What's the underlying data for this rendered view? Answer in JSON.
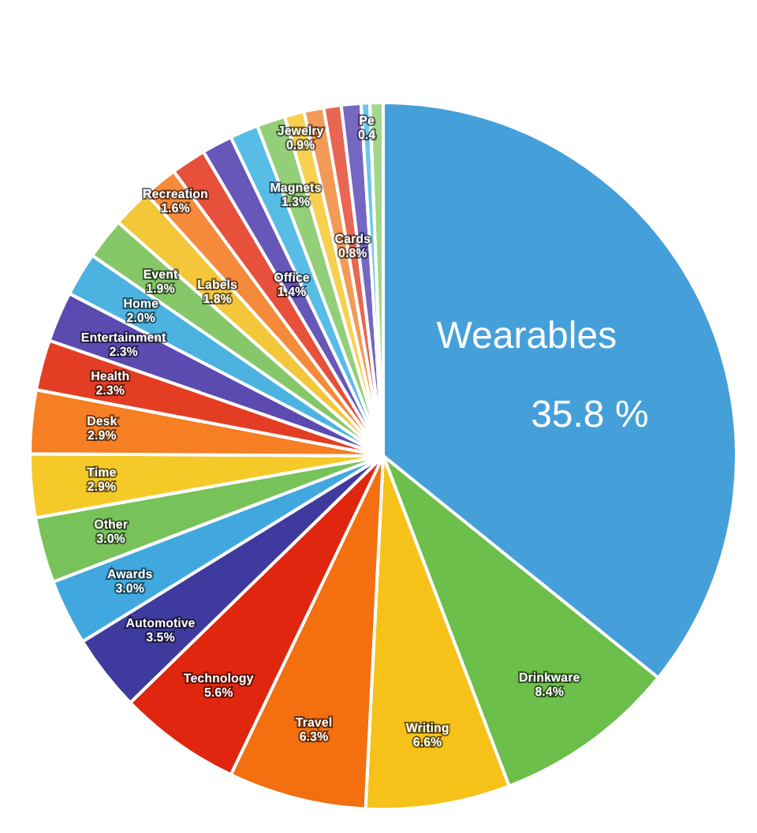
{
  "chart_data": {
    "type": "pie",
    "categories": [
      "Wearables",
      "Drinkware",
      "Writing",
      "Travel",
      "Technology",
      "Automotive",
      "Awards",
      "Other",
      "Time",
      "Desk",
      "Health",
      "Entertainment",
      "Home",
      "Event",
      "Labels",
      "Recreation",
      null,
      "Office",
      null,
      "Magnets",
      "Jewelry",
      null,
      "Cards",
      null,
      "Pe",
      null
    ],
    "values": [
      35.8,
      8.4,
      6.6,
      6.3,
      5.6,
      3.5,
      3.0,
      3.0,
      2.9,
      2.9,
      2.3,
      2.3,
      2.0,
      1.9,
      1.8,
      1.6,
      1.6,
      1.4,
      1.3,
      1.3,
      0.9,
      0.9,
      0.8,
      0.9,
      0.4,
      0.6
    ],
    "value_labels": [
      "35.8 %",
      "8.4%",
      "6.6%",
      "6.3%",
      "5.6%",
      "3.5%",
      "3.0%",
      "3.0%",
      "2.9%",
      "2.9%",
      "2.3%",
      "2.3%",
      "2.0%",
      "1.9%",
      "1.8%",
      "1.6%",
      null,
      "1.4%",
      null,
      "1.3%",
      "0.9%",
      null,
      "0.8%",
      null,
      "0.4",
      null
    ],
    "colors": [
      "#45a0da",
      "#6cbf4a",
      "#f6c21a",
      "#f36f0f",
      "#e0260e",
      "#3f3b9e",
      "#40a8de",
      "#78c25a",
      "#f5c928",
      "#f57f22",
      "#e33e24",
      "#5b4bb0",
      "#4cb3e0",
      "#86c869",
      "#f4c63a",
      "#f58a3a",
      "#e7503a",
      "#6757b8",
      "#58bde6",
      "#93cf78",
      "#f6d04e",
      "#f39a56",
      "#e86652",
      "#7667c2",
      "#6ac6ec",
      "#a3d78b"
    ],
    "legend": false
  }
}
